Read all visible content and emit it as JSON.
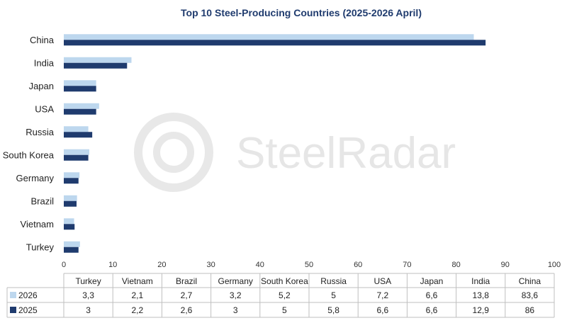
{
  "chart_data": {
    "type": "bar",
    "orientation": "horizontal",
    "title": "Top 10 Steel-Producing Countries (2025-2026 April)",
    "categories": [
      "China",
      "India",
      "Japan",
      "USA",
      "Russia",
      "South Korea",
      "Germany",
      "Brazil",
      "Vietnam",
      "Turkey"
    ],
    "series": [
      {
        "name": "2026",
        "color": "#bdd7ee",
        "values": [
          83.6,
          13.8,
          6.6,
          7.2,
          5,
          5.2,
          3.2,
          2.7,
          2.1,
          3.3
        ]
      },
      {
        "name": "2025",
        "color": "#1f3b6e",
        "values": [
          86,
          12.9,
          6.6,
          6.6,
          5.8,
          5,
          3,
          2.6,
          2.2,
          3
        ]
      }
    ],
    "xlim": [
      0,
      100
    ],
    "x_ticks": [
      "0",
      "10",
      "20",
      "30",
      "40",
      "50",
      "60",
      "70",
      "80",
      "90",
      "100"
    ],
    "grid": false,
    "legend": "data-table",
    "data_table": {
      "columns": [
        "Turkey",
        "Vietnam",
        "Brazil",
        "Germany",
        "South Korea",
        "Russia",
        "USA",
        "Japan",
        "India",
        "China"
      ],
      "rows": [
        {
          "series": "2026",
          "cells": [
            "3,3",
            "2,1",
            "2,7",
            "3,2",
            "5,2",
            "5",
            "7,2",
            "6,6",
            "13,8",
            "83,6"
          ]
        },
        {
          "series": "2025",
          "cells": [
            "3",
            "2,2",
            "2,6",
            "3",
            "5",
            "5,8",
            "6,6",
            "6,6",
            "12,9",
            "86"
          ]
        }
      ]
    }
  },
  "watermark": {
    "text": "SteelRadar",
    "icon": "steelradar-logo-icon"
  }
}
